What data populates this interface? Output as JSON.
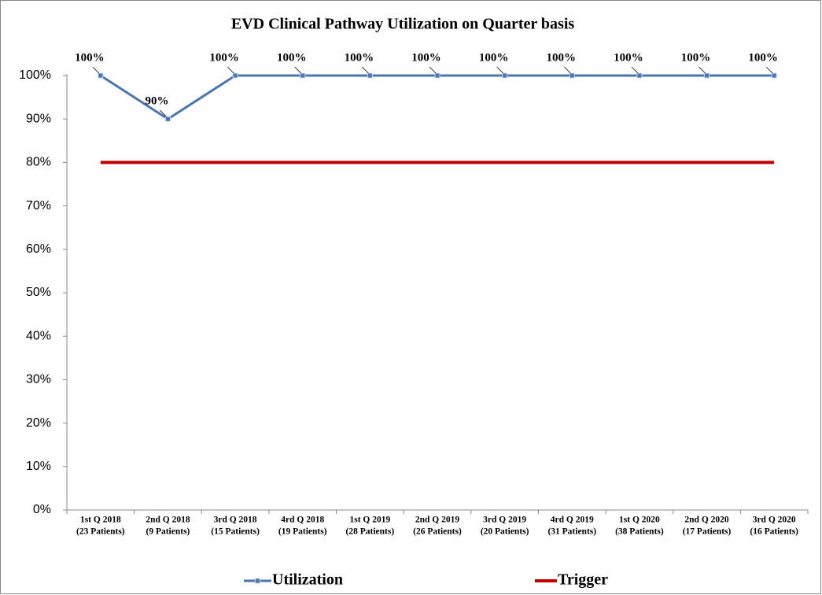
{
  "chart_data": {
    "type": "line",
    "title": "EVD Clinical Pathway Utilization on Quarter basis",
    "categories": [
      [
        "1st Q 2018",
        "(23 Patients)"
      ],
      [
        "2nd Q 2018",
        "(9 Patients)"
      ],
      [
        "3rd Q 2018",
        "(15 Patients)"
      ],
      [
        "4rd Q 2018",
        "(19 Patients)"
      ],
      [
        "1st Q 2019",
        "(28 Patients)"
      ],
      [
        "2nd  Q 2019",
        "(26 Patients)"
      ],
      [
        "3rd  Q 2019",
        "(20 Patients)"
      ],
      [
        "4rd Q 2019",
        "(31 Patients)"
      ],
      [
        "1st Q 2020",
        "(38 Patients)"
      ],
      [
        "2nd Q 2020",
        "(17 Patients)"
      ],
      [
        "3rd Q 2020",
        "(16 Patients)"
      ]
    ],
    "series": [
      {
        "name": "Utilization",
        "color": "#4a76b0",
        "values": [
          100,
          90,
          100,
          100,
          100,
          100,
          100,
          100,
          100,
          100,
          100
        ],
        "value_labels": [
          "100%",
          "90%",
          "100%",
          "100%",
          "100%",
          "100%",
          "100%",
          "100%",
          "100%",
          "100%",
          "100%"
        ]
      },
      {
        "name": "Trigger",
        "color": "#c00000",
        "values": [
          80,
          80,
          80,
          80,
          80,
          80,
          80,
          80,
          80,
          80,
          80
        ]
      }
    ],
    "ylim": [
      0,
      100
    ],
    "yticks": [
      {
        "value": 0,
        "label": "0%"
      },
      {
        "value": 10,
        "label": "10%"
      },
      {
        "value": 20,
        "label": "20%"
      },
      {
        "value": 30,
        "label": "30%"
      },
      {
        "value": 40,
        "label": "40%"
      },
      {
        "value": 50,
        "label": "50%"
      },
      {
        "value": 60,
        "label": "60%"
      },
      {
        "value": 70,
        "label": "70%"
      },
      {
        "value": 80,
        "label": "80%"
      },
      {
        "value": 90,
        "label": "90%"
      },
      {
        "value": 100,
        "label": "100%"
      }
    ],
    "grid": false
  }
}
